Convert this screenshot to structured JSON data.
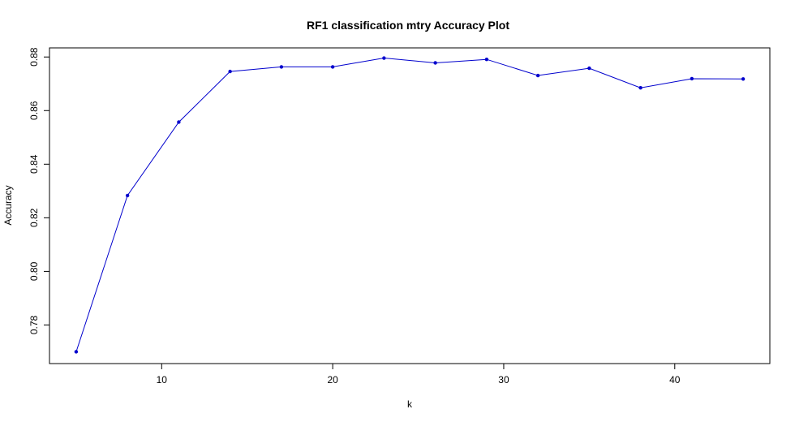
{
  "chart_data": {
    "type": "line",
    "title": "RF1 classification mtry Accuracy Plot",
    "xlabel": "k",
    "ylabel": "Accuracy",
    "x": [
      5,
      8,
      11,
      14,
      17,
      20,
      23,
      26,
      29,
      32,
      35,
      38,
      41,
      44
    ],
    "series": [
      {
        "values": [
          0.77,
          0.8283,
          0.8557,
          0.8746,
          0.8763,
          0.8763,
          0.8796,
          0.8778,
          0.8791,
          0.8731,
          0.8758,
          0.8685,
          0.8719,
          0.8718
        ]
      }
    ],
    "xlim": [
      3.44,
      45.56
    ],
    "ylim": [
      0.7656,
      0.8834
    ],
    "xticks": [
      10,
      20,
      30,
      40
    ],
    "xtick_labels": [
      "10",
      "20",
      "30",
      "40"
    ],
    "yticks": [
      0.78,
      0.8,
      0.82,
      0.84,
      0.86,
      0.88
    ],
    "ytick_labels": [
      "0.78",
      "0.80",
      "0.82",
      "0.84",
      "0.86",
      "0.88"
    ],
    "grid": false,
    "legend": "none",
    "colors": {
      "line": "#0000cd",
      "marker": "#0000cd",
      "axis": "#000000"
    }
  }
}
